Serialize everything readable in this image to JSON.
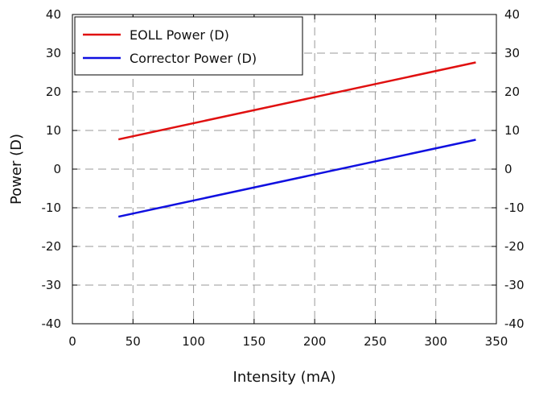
{
  "chart_data": {
    "type": "line",
    "title": "",
    "xlabel": "Intensity (mA)",
    "ylabel": "Power (D)",
    "xlim": [
      0,
      350
    ],
    "ylim": [
      -40,
      40
    ],
    "x_ticks": [
      0,
      50,
      100,
      150,
      200,
      250,
      300,
      350
    ],
    "y_ticks": [
      -40,
      -30,
      -20,
      -10,
      0,
      10,
      20,
      30,
      40
    ],
    "grid": true,
    "grid_style": "dashed",
    "right_axis_labels": true,
    "legend_position": "top-left",
    "series": [
      {
        "name": "EOLL Power (D)",
        "color": "#e01010",
        "x": [
          38,
          333
        ],
        "y": [
          7.7,
          27.6
        ]
      },
      {
        "name": "Corrector Power (D)",
        "color": "#1010e0",
        "x": [
          38,
          333
        ],
        "y": [
          -12.3,
          7.6
        ]
      }
    ]
  }
}
